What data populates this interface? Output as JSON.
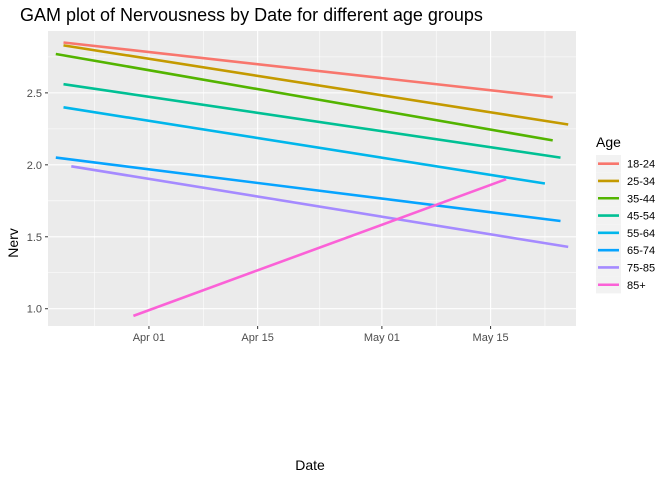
{
  "chart_data": {
    "type": "line",
    "title": "GAM plot of Nervousness by Date for different age groups",
    "xlabel": "Date",
    "ylabel": "Nerv",
    "xlim": [
      "2020-03-19",
      "2020-05-26"
    ],
    "ylim": [
      0.88,
      2.93
    ],
    "x_ticks": [
      "2020-04-01",
      "2020-04-15",
      "2020-05-01",
      "2020-05-15"
    ],
    "x_tick_labels": [
      "Apr 01",
      "Apr 15",
      "May 01",
      "May 15"
    ],
    "y_ticks": [
      1.0,
      1.5,
      2.0,
      2.5
    ],
    "y_tick_labels": [
      "1.0",
      "1.5",
      "2.0",
      "2.5"
    ],
    "grid": true,
    "legend_title": "Age",
    "legend_position": "right",
    "series": [
      {
        "name": "18-24",
        "color": "#F8766D",
        "x": [
          "2020-03-21",
          "2020-05-23"
        ],
        "y": [
          2.85,
          2.47
        ]
      },
      {
        "name": "25-34",
        "color": "#C49A00",
        "x": [
          "2020-03-21",
          "2020-05-25"
        ],
        "y": [
          2.83,
          2.28
        ]
      },
      {
        "name": "35-44",
        "color": "#53B400",
        "x": [
          "2020-03-20",
          "2020-05-23"
        ],
        "y": [
          2.77,
          2.17
        ]
      },
      {
        "name": "45-54",
        "color": "#00C094",
        "x": [
          "2020-03-21",
          "2020-05-24"
        ],
        "y": [
          2.56,
          2.05
        ]
      },
      {
        "name": "55-64",
        "color": "#00B6EB",
        "x": [
          "2020-03-21",
          "2020-05-22"
        ],
        "y": [
          2.4,
          1.87
        ]
      },
      {
        "name": "65-74",
        "color": "#06A4FF",
        "x": [
          "2020-03-20",
          "2020-05-24"
        ],
        "y": [
          2.05,
          1.61
        ]
      },
      {
        "name": "75-85",
        "color": "#A58AFF",
        "x": [
          "2020-03-22",
          "2020-05-25"
        ],
        "y": [
          1.99,
          1.43
        ]
      },
      {
        "name": "85+",
        "color": "#FB61D7",
        "x": [
          "2020-03-30",
          "2020-05-17"
        ],
        "y": [
          0.95,
          1.9
        ]
      }
    ]
  }
}
